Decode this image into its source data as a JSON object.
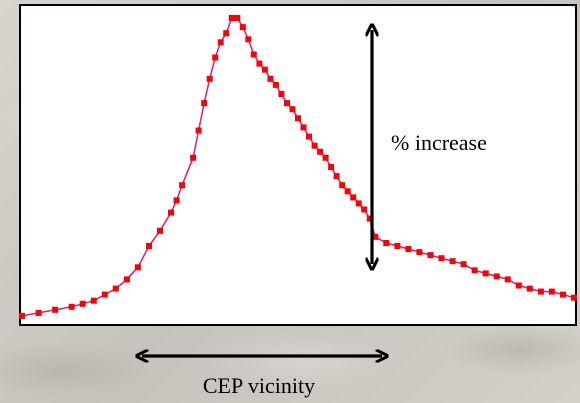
{
  "chart_data": {
    "type": "line",
    "title": "",
    "xlabel": "",
    "ylabel": "",
    "grid": false,
    "xlim": [
      0,
      100
    ],
    "ylim": [
      0,
      100
    ],
    "series": [
      {
        "color": "#ff0000",
        "line_color": "#e0188c",
        "x": [
          0,
          3,
          6,
          9,
          11,
          13,
          15,
          17,
          19,
          21,
          23,
          25,
          27,
          28,
          29,
          31,
          32,
          33,
          34,
          35,
          36,
          37,
          38,
          39,
          40,
          41,
          42,
          43,
          44,
          45,
          46,
          47,
          48,
          49,
          50,
          51,
          52,
          53,
          54,
          55,
          56,
          57,
          58,
          59,
          60,
          61,
          62,
          63,
          64,
          66,
          68,
          70,
          72,
          74,
          76,
          78,
          80,
          82,
          84,
          86,
          88,
          90,
          92,
          94,
          96,
          98,
          100
        ],
        "y": [
          2,
          3,
          4,
          5,
          6,
          7,
          9,
          11,
          14,
          18,
          25,
          30,
          36,
          40,
          45,
          54,
          63,
          72,
          80,
          87,
          92,
          95,
          100,
          100,
          97,
          93,
          88,
          85,
          83,
          80,
          78,
          75,
          72,
          70,
          67,
          64,
          61,
          58,
          56,
          54,
          51,
          48,
          45,
          43,
          41,
          39,
          37,
          34,
          28,
          26,
          25,
          24,
          23,
          22,
          21,
          20,
          19,
          17,
          16,
          15,
          14,
          12,
          11,
          10,
          10,
          9,
          8
        ]
      }
    ],
    "annotations": [
      {
        "text": "% increase",
        "kind": "vertical-double-arrow"
      },
      {
        "text": "CEP vicinity",
        "kind": "horizontal-double-arrow"
      }
    ]
  }
}
